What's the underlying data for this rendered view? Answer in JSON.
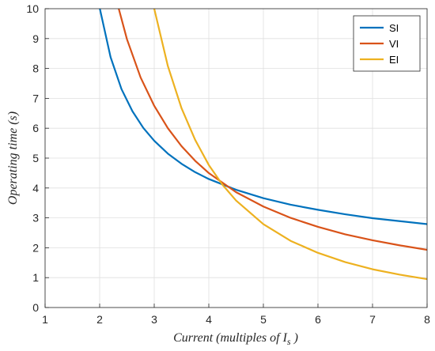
{
  "chart_data": {
    "type": "line",
    "xlabel": {
      "prefix": "Current (multiples of ",
      "symbol": "I",
      "subscript": "s",
      "suffix": " )"
    },
    "ylabel": "Operating time (s)",
    "xlim": [
      1,
      8
    ],
    "ylim": [
      0,
      10
    ],
    "xticks": [
      1,
      2,
      3,
      4,
      5,
      6,
      7,
      8
    ],
    "yticks": [
      0,
      1,
      2,
      3,
      4,
      5,
      6,
      7,
      8,
      9,
      10
    ],
    "grid": true,
    "legend_position": "top-right",
    "series": [
      {
        "name": "SI",
        "color": "#0072BD",
        "points": [
          [
            2.0,
            10.03
          ],
          [
            2.2,
            8.38
          ],
          [
            2.4,
            7.31
          ],
          [
            2.6,
            6.57
          ],
          [
            2.8,
            6.01
          ],
          [
            3.0,
            5.58
          ],
          [
            3.25,
            5.15
          ],
          [
            3.5,
            4.81
          ],
          [
            3.75,
            4.53
          ],
          [
            4.0,
            4.3
          ],
          [
            4.5,
            3.94
          ],
          [
            5.0,
            3.66
          ],
          [
            5.5,
            3.44
          ],
          [
            6.0,
            3.27
          ],
          [
            6.5,
            3.12
          ],
          [
            7.0,
            2.99
          ],
          [
            7.5,
            2.89
          ],
          [
            8.0,
            2.79
          ]
        ]
      },
      {
        "name": "VI",
        "color": "#D95319",
        "points": [
          [
            2.35,
            10.0
          ],
          [
            2.5,
            8.98
          ],
          [
            2.75,
            7.7
          ],
          [
            3.0,
            6.75
          ],
          [
            3.25,
            6.0
          ],
          [
            3.5,
            5.4
          ],
          [
            3.75,
            4.91
          ],
          [
            4.0,
            4.5
          ],
          [
            4.5,
            3.86
          ],
          [
            5.0,
            3.38
          ],
          [
            5.5,
            3.0
          ],
          [
            6.0,
            2.7
          ],
          [
            6.5,
            2.45
          ],
          [
            7.0,
            2.25
          ],
          [
            7.5,
            2.08
          ],
          [
            8.0,
            1.93
          ]
        ]
      },
      {
        "name": "EI",
        "color": "#EDB120",
        "points": [
          [
            3.0,
            10.0
          ],
          [
            3.25,
            8.08
          ],
          [
            3.5,
            6.67
          ],
          [
            3.75,
            5.61
          ],
          [
            4.0,
            4.77
          ],
          [
            4.25,
            4.11
          ],
          [
            4.5,
            3.58
          ],
          [
            5.0,
            2.79
          ],
          [
            5.5,
            2.23
          ],
          [
            6.0,
            1.83
          ],
          [
            6.5,
            1.52
          ],
          [
            7.0,
            1.28
          ],
          [
            7.5,
            1.1
          ],
          [
            8.0,
            0.95
          ]
        ]
      }
    ]
  }
}
